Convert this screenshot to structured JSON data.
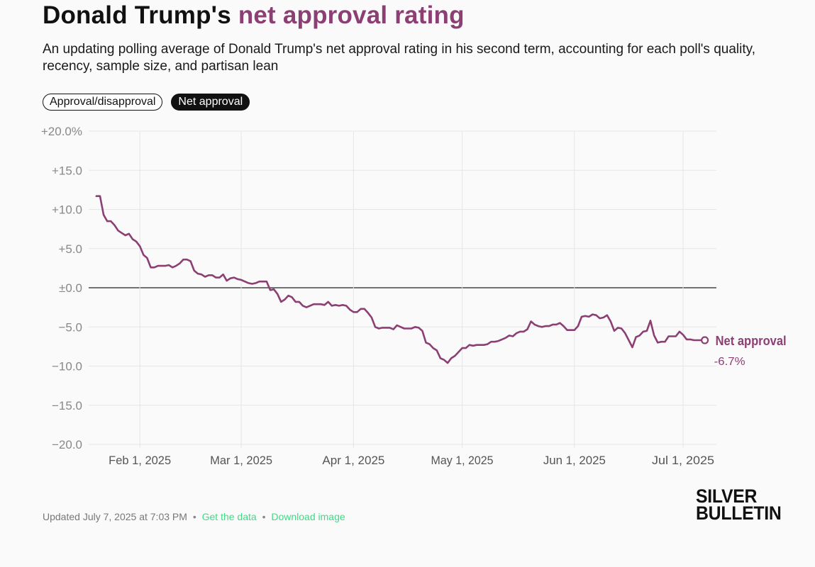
{
  "header": {
    "title_prefix": "Donald Trump's",
    "title_accent": "net approval rating",
    "subtitle": "An updating polling average of Donald Trump's net approval rating in his second term, accounting for each poll's quality, recency, sample size, and partisan lean"
  },
  "toggles": {
    "approval_disapproval": "Approval/disapproval",
    "net_approval": "Net approval",
    "active": "net_approval"
  },
  "footer": {
    "updated": "Updated July 7, 2025 at 7:03 PM",
    "separator": "•",
    "get_data": "Get the data",
    "download_image": "Download image"
  },
  "logo": {
    "line1": "SILVER",
    "line2": "BULLETIN"
  },
  "colors": {
    "accent": "#8b3f73",
    "link": "#3ddc84",
    "grid": "#e6e6e6",
    "zero_line": "#222222",
    "tick": "#888888"
  },
  "chart_data": {
    "type": "line",
    "title": "Donald Trump's net approval rating",
    "ylim": [
      -20,
      20
    ],
    "xlim": [
      "2025-01-20",
      "2025-07-07"
    ],
    "y_ticks": [
      20,
      15,
      10,
      5,
      0,
      -5,
      -10,
      -15,
      -20
    ],
    "y_tick_labels": [
      "+20.0%",
      "+15.0",
      "+10.0",
      "+5.0",
      "±0.0",
      "−5.0",
      "−10.0",
      "−15.0",
      "−20.0"
    ],
    "x_ticks": [
      "2025-02-01",
      "2025-03-01",
      "2025-04-01",
      "2025-05-01",
      "2025-06-01",
      "2025-07-01"
    ],
    "x_tick_labels": [
      "Feb 1, 2025",
      "Mar 1, 2025",
      "Apr 1, 2025",
      "May 1, 2025",
      "Jun 1, 2025",
      "Jul 1, 2025"
    ],
    "grid": true,
    "series": [
      {
        "name": "Net approval",
        "end_label": "-6.7%",
        "color": "#8b3f73",
        "points": [
          [
            "2025-01-20",
            11.7
          ],
          [
            "2025-01-21",
            11.7
          ],
          [
            "2025-01-22",
            9.3
          ],
          [
            "2025-01-23",
            8.5
          ],
          [
            "2025-01-24",
            8.5
          ],
          [
            "2025-01-25",
            8.0
          ],
          [
            "2025-01-26",
            7.3
          ],
          [
            "2025-01-27",
            7.0
          ],
          [
            "2025-01-28",
            6.7
          ],
          [
            "2025-01-29",
            6.9
          ],
          [
            "2025-01-30",
            6.2
          ],
          [
            "2025-01-31",
            5.9
          ],
          [
            "2025-02-01",
            5.3
          ],
          [
            "2025-02-02",
            4.2
          ],
          [
            "2025-02-03",
            3.8
          ],
          [
            "2025-02-04",
            2.6
          ],
          [
            "2025-02-05",
            2.6
          ],
          [
            "2025-02-06",
            2.8
          ],
          [
            "2025-02-07",
            2.8
          ],
          [
            "2025-02-08",
            2.8
          ],
          [
            "2025-02-09",
            2.9
          ],
          [
            "2025-02-10",
            2.6
          ],
          [
            "2025-02-11",
            2.8
          ],
          [
            "2025-02-12",
            3.1
          ],
          [
            "2025-02-13",
            3.6
          ],
          [
            "2025-02-14",
            3.6
          ],
          [
            "2025-02-15",
            3.4
          ],
          [
            "2025-02-16",
            2.2
          ],
          [
            "2025-02-17",
            1.8
          ],
          [
            "2025-02-18",
            1.7
          ],
          [
            "2025-02-19",
            1.4
          ],
          [
            "2025-02-20",
            1.6
          ],
          [
            "2025-02-21",
            1.6
          ],
          [
            "2025-02-22",
            1.3
          ],
          [
            "2025-02-23",
            1.3
          ],
          [
            "2025-02-24",
            1.7
          ],
          [
            "2025-02-25",
            0.9
          ],
          [
            "2025-02-26",
            1.2
          ],
          [
            "2025-02-27",
            1.3
          ],
          [
            "2025-02-28",
            1.1
          ],
          [
            "2025-03-01",
            1.0
          ],
          [
            "2025-03-02",
            0.8
          ],
          [
            "2025-03-03",
            0.6
          ],
          [
            "2025-03-04",
            0.5
          ],
          [
            "2025-03-05",
            0.6
          ],
          [
            "2025-03-06",
            0.8
          ],
          [
            "2025-03-07",
            0.8
          ],
          [
            "2025-03-08",
            0.8
          ],
          [
            "2025-03-09",
            -0.3
          ],
          [
            "2025-03-10",
            -0.2
          ],
          [
            "2025-03-11",
            -0.8
          ],
          [
            "2025-03-12",
            -1.8
          ],
          [
            "2025-03-13",
            -1.5
          ],
          [
            "2025-03-14",
            -1.0
          ],
          [
            "2025-03-15",
            -1.2
          ],
          [
            "2025-03-16",
            -1.8
          ],
          [
            "2025-03-17",
            -1.8
          ],
          [
            "2025-03-18",
            -2.3
          ],
          [
            "2025-03-19",
            -2.5
          ],
          [
            "2025-03-20",
            -2.3
          ],
          [
            "2025-03-21",
            -2.1
          ],
          [
            "2025-03-22",
            -2.1
          ],
          [
            "2025-03-23",
            -2.1
          ],
          [
            "2025-03-24",
            -2.2
          ],
          [
            "2025-03-25",
            -1.8
          ],
          [
            "2025-03-26",
            -2.3
          ],
          [
            "2025-03-27",
            -2.2
          ],
          [
            "2025-03-28",
            -2.3
          ],
          [
            "2025-03-29",
            -2.2
          ],
          [
            "2025-03-30",
            -2.3
          ],
          [
            "2025-03-31",
            -2.8
          ],
          [
            "2025-04-01",
            -3.1
          ],
          [
            "2025-04-02",
            -3.1
          ],
          [
            "2025-04-03",
            -2.7
          ],
          [
            "2025-04-04",
            -2.7
          ],
          [
            "2025-04-05",
            -3.2
          ],
          [
            "2025-04-06",
            -3.8
          ],
          [
            "2025-04-07",
            -5.0
          ],
          [
            "2025-04-08",
            -5.2
          ],
          [
            "2025-04-09",
            -5.1
          ],
          [
            "2025-04-10",
            -5.1
          ],
          [
            "2025-04-11",
            -5.1
          ],
          [
            "2025-04-12",
            -5.3
          ],
          [
            "2025-04-13",
            -4.8
          ],
          [
            "2025-04-14",
            -5.0
          ],
          [
            "2025-04-15",
            -5.2
          ],
          [
            "2025-04-16",
            -5.2
          ],
          [
            "2025-04-17",
            -5.2
          ],
          [
            "2025-04-18",
            -5.0
          ],
          [
            "2025-04-19",
            -5.1
          ],
          [
            "2025-04-20",
            -5.5
          ],
          [
            "2025-04-21",
            -7.0
          ],
          [
            "2025-04-22",
            -7.2
          ],
          [
            "2025-04-23",
            -7.7
          ],
          [
            "2025-04-24",
            -8.0
          ],
          [
            "2025-04-25",
            -9.0
          ],
          [
            "2025-04-26",
            -9.2
          ],
          [
            "2025-04-27",
            -9.6
          ],
          [
            "2025-04-28",
            -9.0
          ],
          [
            "2025-04-29",
            -8.7
          ],
          [
            "2025-04-30",
            -8.2
          ],
          [
            "2025-05-01",
            -7.7
          ],
          [
            "2025-05-02",
            -7.7
          ],
          [
            "2025-05-03",
            -7.3
          ],
          [
            "2025-05-04",
            -7.4
          ],
          [
            "2025-05-05",
            -7.3
          ],
          [
            "2025-05-06",
            -7.3
          ],
          [
            "2025-05-07",
            -7.3
          ],
          [
            "2025-05-08",
            -7.2
          ],
          [
            "2025-05-09",
            -6.9
          ],
          [
            "2025-05-10",
            -6.9
          ],
          [
            "2025-05-11",
            -6.8
          ],
          [
            "2025-05-12",
            -6.6
          ],
          [
            "2025-05-13",
            -6.4
          ],
          [
            "2025-05-14",
            -6.1
          ],
          [
            "2025-05-15",
            -6.2
          ],
          [
            "2025-05-16",
            -5.8
          ],
          [
            "2025-05-17",
            -5.6
          ],
          [
            "2025-05-18",
            -5.6
          ],
          [
            "2025-05-19",
            -5.3
          ],
          [
            "2025-05-20",
            -4.3
          ],
          [
            "2025-05-21",
            -4.7
          ],
          [
            "2025-05-22",
            -4.9
          ],
          [
            "2025-05-23",
            -5.0
          ],
          [
            "2025-05-24",
            -4.9
          ],
          [
            "2025-05-25",
            -4.9
          ],
          [
            "2025-05-26",
            -4.7
          ],
          [
            "2025-05-27",
            -4.7
          ],
          [
            "2025-05-28",
            -4.5
          ],
          [
            "2025-05-29",
            -4.9
          ],
          [
            "2025-05-30",
            -5.4
          ],
          [
            "2025-05-31",
            -5.4
          ],
          [
            "2025-06-01",
            -5.4
          ],
          [
            "2025-06-02",
            -4.9
          ],
          [
            "2025-06-03",
            -3.7
          ],
          [
            "2025-06-04",
            -3.6
          ],
          [
            "2025-06-05",
            -3.7
          ],
          [
            "2025-06-06",
            -3.4
          ],
          [
            "2025-06-07",
            -3.5
          ],
          [
            "2025-06-08",
            -3.9
          ],
          [
            "2025-06-09",
            -3.8
          ],
          [
            "2025-06-10",
            -3.5
          ],
          [
            "2025-06-11",
            -4.3
          ],
          [
            "2025-06-12",
            -5.5
          ],
          [
            "2025-06-13",
            -5.1
          ],
          [
            "2025-06-14",
            -5.2
          ],
          [
            "2025-06-15",
            -5.8
          ],
          [
            "2025-06-16",
            -6.7
          ],
          [
            "2025-06-17",
            -7.6
          ],
          [
            "2025-06-18",
            -6.3
          ],
          [
            "2025-06-19",
            -6.1
          ],
          [
            "2025-06-20",
            -5.6
          ],
          [
            "2025-06-21",
            -5.5
          ],
          [
            "2025-06-22",
            -4.2
          ],
          [
            "2025-06-23",
            -6.1
          ],
          [
            "2025-06-24",
            -7.0
          ],
          [
            "2025-06-25",
            -6.9
          ],
          [
            "2025-06-26",
            -6.9
          ],
          [
            "2025-06-27",
            -6.2
          ],
          [
            "2025-06-28",
            -6.2
          ],
          [
            "2025-06-29",
            -6.2
          ],
          [
            "2025-06-30",
            -5.6
          ],
          [
            "2025-07-01",
            -6.0
          ],
          [
            "2025-07-02",
            -6.6
          ],
          [
            "2025-07-03",
            -6.6
          ],
          [
            "2025-07-04",
            -6.7
          ],
          [
            "2025-07-05",
            -6.7
          ],
          [
            "2025-07-06",
            -6.7
          ],
          [
            "2025-07-07",
            -6.7
          ]
        ]
      }
    ]
  }
}
